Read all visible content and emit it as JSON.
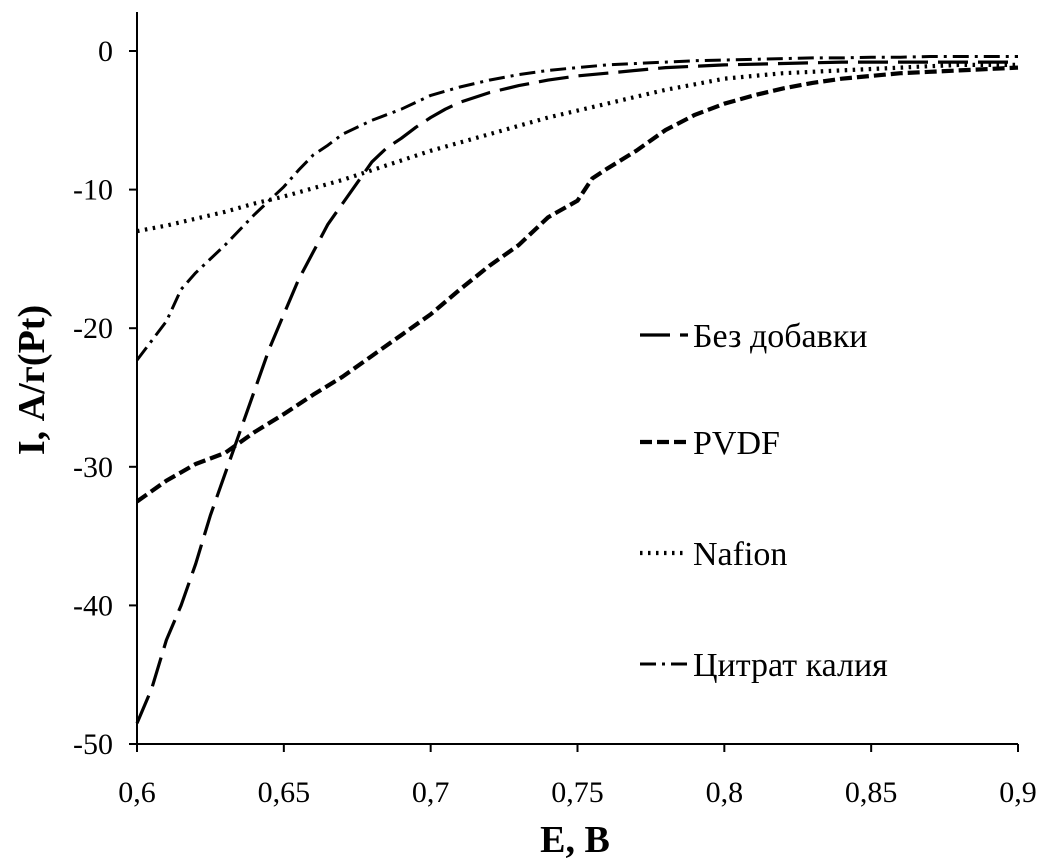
{
  "chart_data": {
    "type": "line",
    "xlabel": "E, В",
    "ylabel": "I, А/г(Pt)",
    "xlim": [
      0.6,
      0.9
    ],
    "ylim": [
      -50,
      0
    ],
    "xticks": [
      "0,6",
      "0,65",
      "0,7",
      "0,75",
      "0,8",
      "0,85",
      "0,9"
    ],
    "yticks": [
      "0",
      "-10",
      "-20",
      "-30",
      "-40",
      "-50"
    ],
    "grid": false,
    "legend_position": "right",
    "series": [
      {
        "name": "Без добавки",
        "style": "long-dash",
        "x": [
          0.6,
          0.605,
          0.61,
          0.615,
          0.62,
          0.625,
          0.63,
          0.635,
          0.64,
          0.645,
          0.65,
          0.655,
          0.66,
          0.665,
          0.67,
          0.675,
          0.68,
          0.685,
          0.69,
          0.695,
          0.7,
          0.705,
          0.71,
          0.72,
          0.73,
          0.74,
          0.75,
          0.76,
          0.77,
          0.78,
          0.8,
          0.82,
          0.84,
          0.86,
          0.88,
          0.9
        ],
        "y": [
          -48.5,
          -46,
          -42.5,
          -40,
          -37,
          -33.5,
          -30.5,
          -27.5,
          -24.5,
          -21.5,
          -19,
          -16.5,
          -14.5,
          -12.5,
          -11,
          -9.5,
          -8,
          -7,
          -6.3,
          -5.5,
          -4.8,
          -4.2,
          -3.7,
          -3,
          -2.5,
          -2.1,
          -1.8,
          -1.6,
          -1.4,
          -1.2,
          -1.0,
          -0.9,
          -0.8,
          -0.8,
          -0.8,
          -0.8
        ]
      },
      {
        "name": "PVDF",
        "style": "dash",
        "x": [
          0.6,
          0.61,
          0.62,
          0.63,
          0.64,
          0.65,
          0.66,
          0.67,
          0.68,
          0.69,
          0.7,
          0.71,
          0.72,
          0.73,
          0.74,
          0.75,
          0.755,
          0.76,
          0.77,
          0.78,
          0.79,
          0.8,
          0.81,
          0.82,
          0.83,
          0.84,
          0.85,
          0.86,
          0.87,
          0.88,
          0.89,
          0.9
        ],
        "y": [
          -32.5,
          -31,
          -29.8,
          -29,
          -27.5,
          -26.2,
          -24.8,
          -23.5,
          -22,
          -20.5,
          -19,
          -17.2,
          -15.5,
          -14,
          -12,
          -10.8,
          -9.2,
          -8.5,
          -7.2,
          -5.7,
          -4.6,
          -3.8,
          -3.2,
          -2.7,
          -2.3,
          -2.0,
          -1.8,
          -1.6,
          -1.5,
          -1.4,
          -1.3,
          -1.2
        ]
      },
      {
        "name": "Nafion",
        "style": "dot",
        "x": [
          0.6,
          0.61,
          0.62,
          0.63,
          0.64,
          0.65,
          0.66,
          0.67,
          0.68,
          0.69,
          0.7,
          0.71,
          0.72,
          0.73,
          0.74,
          0.75,
          0.76,
          0.77,
          0.78,
          0.79,
          0.8,
          0.81,
          0.82,
          0.83,
          0.84,
          0.85,
          0.86,
          0.87,
          0.88,
          0.89,
          0.9
        ],
        "y": [
          -13,
          -12.6,
          -12.1,
          -11.6,
          -11,
          -10.5,
          -9.9,
          -9.3,
          -8.6,
          -7.9,
          -7.2,
          -6.6,
          -6,
          -5.4,
          -4.8,
          -4.3,
          -3.8,
          -3.3,
          -2.8,
          -2.4,
          -2.0,
          -1.8,
          -1.6,
          -1.5,
          -1.4,
          -1.3,
          -1.2,
          -1.1,
          -1.0,
          -1.0,
          -1.0
        ]
      },
      {
        "name": "Цитрат калия",
        "style": "dash-dot",
        "x": [
          0.6,
          0.61,
          0.615,
          0.62,
          0.63,
          0.64,
          0.65,
          0.655,
          0.66,
          0.665,
          0.67,
          0.68,
          0.69,
          0.7,
          0.71,
          0.72,
          0.73,
          0.74,
          0.75,
          0.76,
          0.77,
          0.78,
          0.79,
          0.8,
          0.81,
          0.82,
          0.83,
          0.84,
          0.85,
          0.86,
          0.87,
          0.88,
          0.89,
          0.9
        ],
        "y": [
          -22.3,
          -19.5,
          -17.2,
          -16,
          -14,
          -11.8,
          -9.8,
          -8.6,
          -7.5,
          -6.8,
          -6,
          -5,
          -4.2,
          -3.2,
          -2.6,
          -2.1,
          -1.7,
          -1.4,
          -1.2,
          -1.0,
          -0.9,
          -0.8,
          -0.7,
          -0.65,
          -0.6,
          -0.55,
          -0.5,
          -0.5,
          -0.45,
          -0.45,
          -0.4,
          -0.4,
          -0.4,
          -0.4
        ]
      }
    ]
  }
}
